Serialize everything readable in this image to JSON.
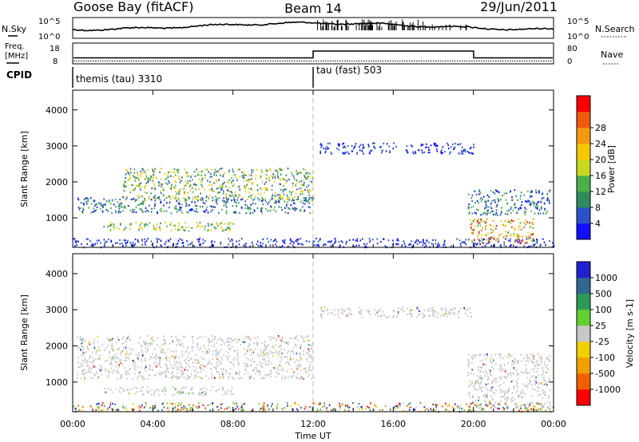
{
  "header": {
    "radar": "Goose Bay (fitACF)",
    "beam": "Beam 14",
    "date": "29/Jun/2011"
  },
  "strip": {
    "nsky_label": "N.Sky",
    "nsearch_label": "N.Search",
    "noise_ticks_left": [
      "10^5",
      "10^0"
    ],
    "noise_ticks_right": [
      "10^5",
      "10^0"
    ],
    "freq_label": "Freq.",
    "freq_unit": "[MHz]",
    "freq_ticks": [
      "18",
      "8"
    ],
    "nave_label": "Nave",
    "nave_ticks": [
      "80",
      "0"
    ],
    "cpid_label": "CPID",
    "cpid_segments": [
      {
        "label": "themis (tau) 3310",
        "start_hour": 0,
        "end_hour": 12
      },
      {
        "label": "tau (fast) 503",
        "start_hour": 12,
        "end_hour": 24
      }
    ]
  },
  "chart_data": [
    {
      "type": "heatmap",
      "panel": "power",
      "ylabel": "Slant Range [km]",
      "xlim": [
        0,
        24
      ],
      "ylim": [
        180,
        4550
      ],
      "yticks": [
        1000,
        2000,
        3000,
        4000
      ],
      "colorbar": {
        "label": "Power [dB]",
        "ticks": [
          "4",
          "8",
          "12",
          "16",
          "20",
          "24",
          "28"
        ],
        "colors": [
          "#1010ff",
          "#2a52c8",
          "#2e8c5c",
          "#4ab04a",
          "#c8d820",
          "#f5c800",
          "#f39a10",
          "#ee5a10",
          "#ff0000"
        ]
      },
      "scatter_regions": [
        {
          "start_hour": 0.2,
          "end_hour": 12.0,
          "min_range_km": 1150,
          "max_range_km": 1600,
          "level": "low-mid"
        },
        {
          "start_hour": 2.5,
          "end_hour": 12.0,
          "min_range_km": 1500,
          "max_range_km": 2400,
          "level": "mid-high"
        },
        {
          "start_hour": 1.5,
          "end_hour": 8.0,
          "min_range_km": 650,
          "max_range_km": 900,
          "level": "mid"
        },
        {
          "start_hour": 0.0,
          "end_hour": 24.0,
          "min_range_km": 200,
          "max_range_km": 450,
          "level": "low"
        },
        {
          "start_hour": 12.3,
          "end_hour": 20.0,
          "min_range_km": 2800,
          "max_range_km": 3100,
          "level": "low"
        },
        {
          "start_hour": 19.7,
          "end_hour": 23.8,
          "min_range_km": 1100,
          "max_range_km": 1800,
          "level": "low-mid"
        },
        {
          "start_hour": 19.8,
          "end_hour": 23.0,
          "min_range_km": 300,
          "max_range_km": 1000,
          "level": "high"
        }
      ]
    },
    {
      "type": "heatmap",
      "panel": "velocity",
      "xlabel": "Time UT",
      "ylabel": "Slant Range [km]",
      "xlim": [
        0,
        24
      ],
      "ylim": [
        180,
        4550
      ],
      "xtick_labels": [
        "00:00",
        "04:00",
        "08:00",
        "12:00",
        "16:00",
        "20:00",
        "00:00"
      ],
      "yticks": [
        1000,
        2000,
        3000,
        4000
      ],
      "colorbar": {
        "label": "Velocity [m s-1]",
        "ticks": [
          "1000",
          "500",
          "100",
          "25",
          "-25",
          "-100",
          "-500",
          "-1000"
        ],
        "colors": [
          "#2020d0",
          "#2e6890",
          "#2e9a58",
          "#62d030",
          "#c8c8c8",
          "#f0d000",
          "#f0a000",
          "#f06000",
          "#ff0000"
        ]
      },
      "scatter_regions": [
        {
          "start_hour": 0.2,
          "end_hour": 12.0,
          "min_range_km": 1100,
          "max_range_km": 2300,
          "level": "ground"
        },
        {
          "start_hour": 1.5,
          "end_hour": 8.0,
          "min_range_km": 650,
          "max_range_km": 900,
          "level": "ground"
        },
        {
          "start_hour": 0.0,
          "end_hour": 24.0,
          "min_range_km": 200,
          "max_range_km": 450,
          "level": "mixed"
        },
        {
          "start_hour": 12.3,
          "end_hour": 20.0,
          "min_range_km": 2800,
          "max_range_km": 3100,
          "level": "ground"
        },
        {
          "start_hour": 19.7,
          "end_hour": 23.8,
          "min_range_km": 300,
          "max_range_km": 1800,
          "level": "ground"
        }
      ]
    }
  ]
}
